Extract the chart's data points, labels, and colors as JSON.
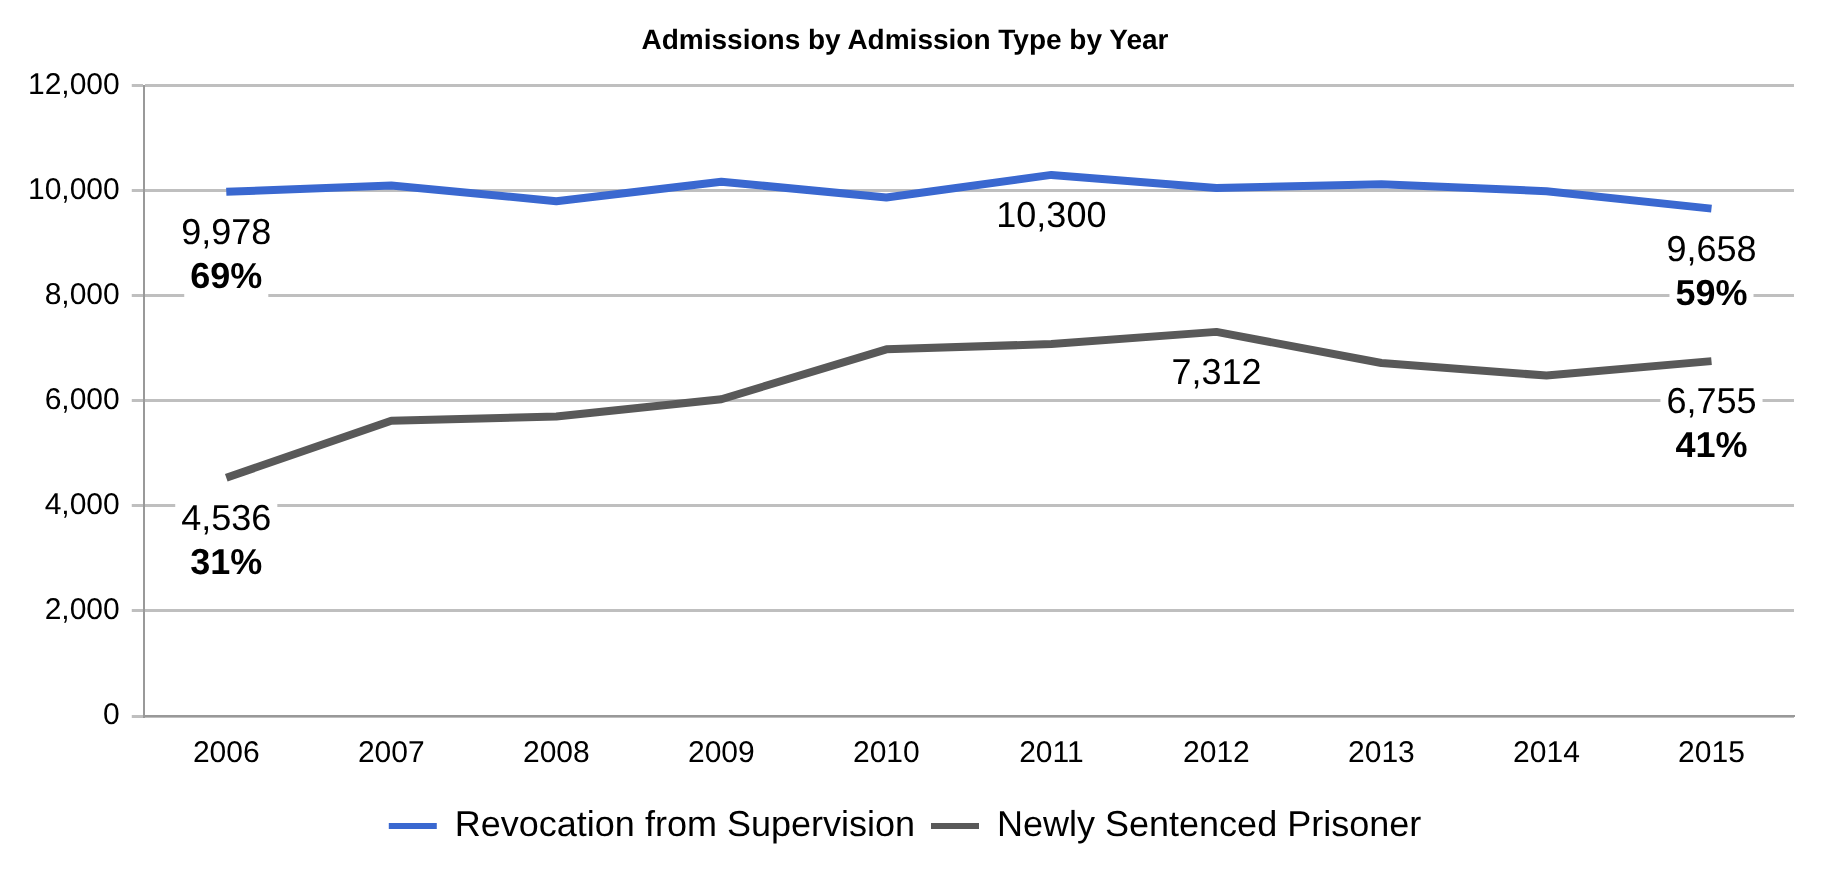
{
  "chart_data": {
    "type": "line",
    "title": "Admissions by Admission Type by Year",
    "categories": [
      "2006",
      "2007",
      "2008",
      "2009",
      "2010",
      "2011",
      "2012",
      "2013",
      "2014",
      "2015"
    ],
    "series": [
      {
        "name": "Revocation from Supervision",
        "color": "#3a68d0",
        "values": [
          9978,
          10100,
          9800,
          10170,
          9870,
          10300,
          10050,
          10120,
          9990,
          9658
        ],
        "value_labels": [
          "9,978",
          null,
          null,
          null,
          null,
          "10,300",
          null,
          null,
          null,
          "9,658"
        ]
      },
      {
        "name": "Newly Sentenced Prisoner",
        "color": "#595959",
        "values": [
          4536,
          5620,
          5700,
          6030,
          6980,
          7080,
          7312,
          6720,
          6480,
          6755
        ],
        "value_labels": [
          "4,536",
          null,
          null,
          null,
          null,
          null,
          "7,312",
          null,
          null,
          "6,755"
        ]
      }
    ],
    "annotations": [
      {
        "text": "69%",
        "x": "2006",
        "y": 9978
      },
      {
        "text": "59%",
        "x": "2015",
        "y": 9658
      },
      {
        "text": "31%",
        "x": "2006",
        "y": 4536
      },
      {
        "text": "41%",
        "x": "2015",
        "y": 6755
      }
    ],
    "ylim": [
      0,
      12000
    ],
    "yticks": [
      0,
      {
        "value": 2000,
        "label": "2,000"
      },
      {
        "value": 4000,
        "label": "4,000"
      },
      {
        "value": 6000,
        "label": "6,000"
      },
      {
        "value": 8000,
        "label": "8,000"
      },
      {
        "value": 10000,
        "label": "10,000"
      },
      {
        "value": 12000,
        "label": "12,000"
      }
    ],
    "grid": "y",
    "legend": "bottom",
    "marker": "none",
    "line_style": "solid"
  }
}
